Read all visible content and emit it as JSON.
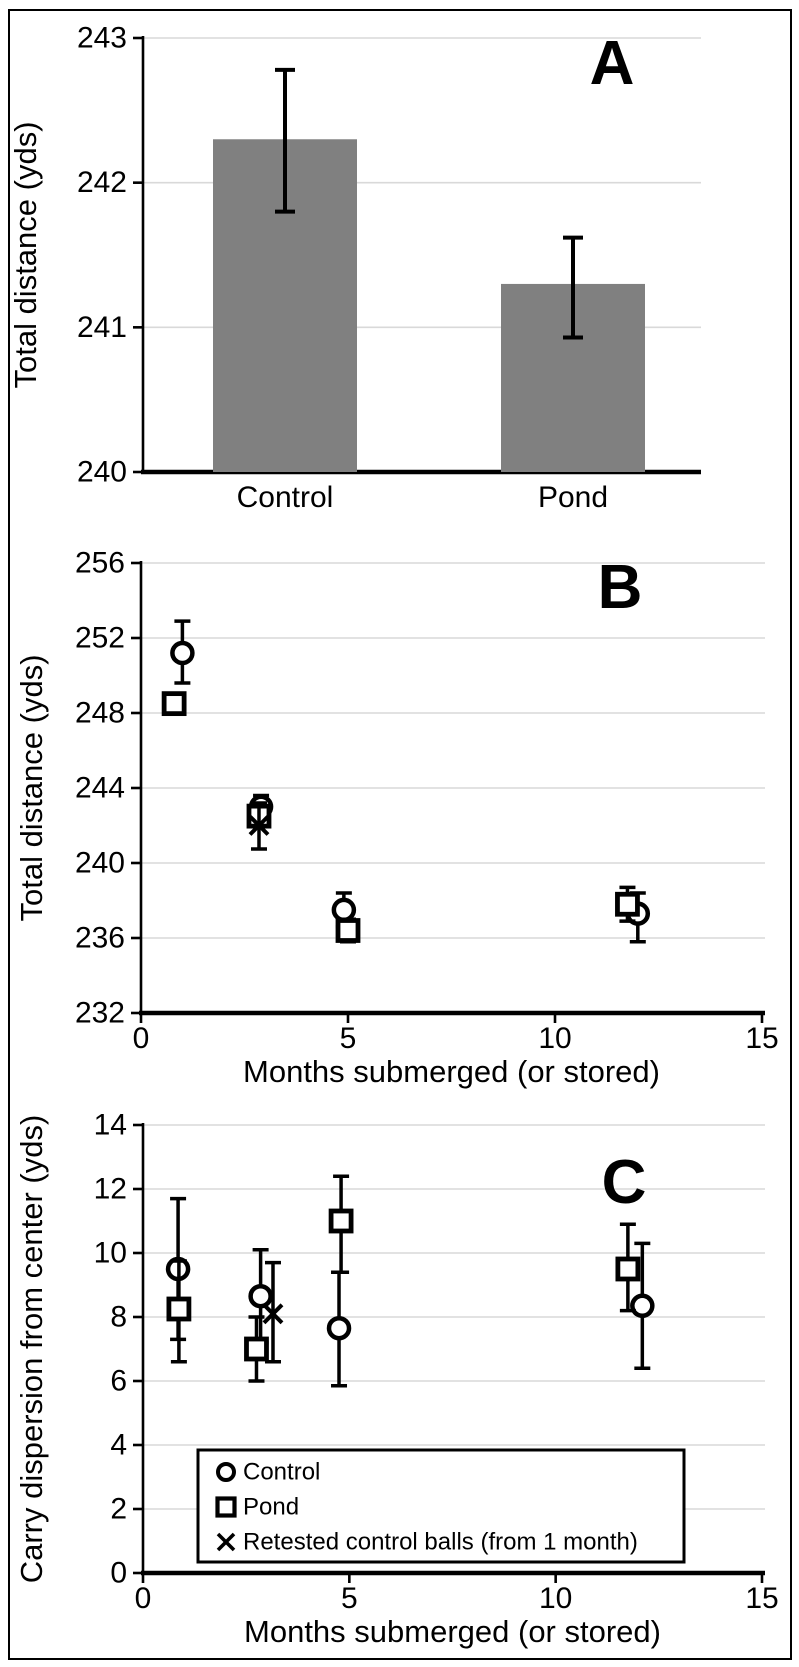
{
  "figure": {
    "background": "#ffffff",
    "frame_color": "#000000",
    "grid_color": "#d9d9d9",
    "axis_color": "#000000",
    "marker_color": "#000000"
  },
  "chart_data": [
    {
      "id": "A",
      "type": "bar",
      "panel_label": "A",
      "ylabel": "Total distance (yds)",
      "ylim": [
        240,
        243
      ],
      "yticks": [
        240,
        241,
        242,
        243
      ],
      "grid": true,
      "bar_color": "#808080",
      "categories": [
        "Control",
        "Pond"
      ],
      "values": [
        242.3,
        241.3
      ],
      "error_low": [
        241.8,
        240.93
      ],
      "error_high": [
        242.78,
        241.62
      ]
    },
    {
      "id": "B",
      "type": "scatter",
      "panel_label": "B",
      "xlabel": "Months submerged (or stored)",
      "ylabel": "Total distance (yds)",
      "xlim": [
        0,
        15
      ],
      "xticks": [
        0,
        5,
        10,
        15
      ],
      "ylim": [
        232,
        256
      ],
      "yticks": [
        232,
        236,
        240,
        244,
        248,
        252,
        256
      ],
      "grid": true,
      "legend_position": "none",
      "series": [
        {
          "name": "Control",
          "marker": "circle",
          "points": [
            {
              "x": 1.0,
              "y": 251.2,
              "lo": 249.6,
              "hi": 252.9
            },
            {
              "x": 2.9,
              "y": 243.0,
              "lo": 242.4,
              "hi": 243.6
            },
            {
              "x": 4.9,
              "y": 237.5,
              "lo": 236.6,
              "hi": 238.4
            },
            {
              "x": 12.0,
              "y": 237.3,
              "lo": 235.8,
              "hi": 238.4
            }
          ]
        },
        {
          "name": "Pond",
          "marker": "square",
          "points": [
            {
              "x": 0.8,
              "y": 248.5,
              "lo": 248.0,
              "hi": 249.0
            },
            {
              "x": 2.85,
              "y": 242.5,
              "lo": 242.0,
              "hi": 243.0
            },
            {
              "x": 5.0,
              "y": 236.4,
              "lo": 235.8,
              "hi": 237.0
            },
            {
              "x": 11.75,
              "y": 237.8,
              "lo": 236.9,
              "hi": 238.7
            }
          ]
        },
        {
          "name": "Retested control balls (from 1 month)",
          "marker": "x",
          "points": [
            {
              "x": 2.85,
              "y": 242.0,
              "lo": 240.75,
              "hi": 243.2
            }
          ]
        }
      ]
    },
    {
      "id": "C",
      "type": "scatter",
      "panel_label": "C",
      "xlabel": "Months submerged (or stored)",
      "ylabel": "Carry dispersion from center (yds)",
      "xlim": [
        0,
        15
      ],
      "xticks": [
        0,
        5,
        10,
        15
      ],
      "ylim": [
        0,
        14
      ],
      "yticks": [
        0,
        2,
        4,
        6,
        8,
        10,
        12,
        14
      ],
      "grid": true,
      "legend_position": "bottom-inside",
      "series": [
        {
          "name": "Control",
          "marker": "circle",
          "points": [
            {
              "x": 0.85,
              "y": 9.5,
              "lo": 7.3,
              "hi": 11.7
            },
            {
              "x": 2.85,
              "y": 8.65,
              "lo": 7.2,
              "hi": 10.1
            },
            {
              "x": 4.75,
              "y": 7.65,
              "lo": 5.85,
              "hi": 9.4
            },
            {
              "x": 12.1,
              "y": 8.35,
              "lo": 6.4,
              "hi": 10.3
            }
          ]
        },
        {
          "name": "Pond",
          "marker": "square",
          "points": [
            {
              "x": 0.87,
              "y": 8.25,
              "lo": 6.6,
              "hi": 9.75
            },
            {
              "x": 2.75,
              "y": 7.0,
              "lo": 6.0,
              "hi": 8.0
            },
            {
              "x": 4.8,
              "y": 11.0,
              "lo": 9.4,
              "hi": 12.4
            },
            {
              "x": 11.75,
              "y": 9.5,
              "lo": 8.2,
              "hi": 10.9
            }
          ]
        },
        {
          "name": "Retested control balls (from 1 month)",
          "marker": "x",
          "points": [
            {
              "x": 3.15,
              "y": 8.1,
              "lo": 6.6,
              "hi": 9.7
            }
          ]
        }
      ]
    }
  ]
}
